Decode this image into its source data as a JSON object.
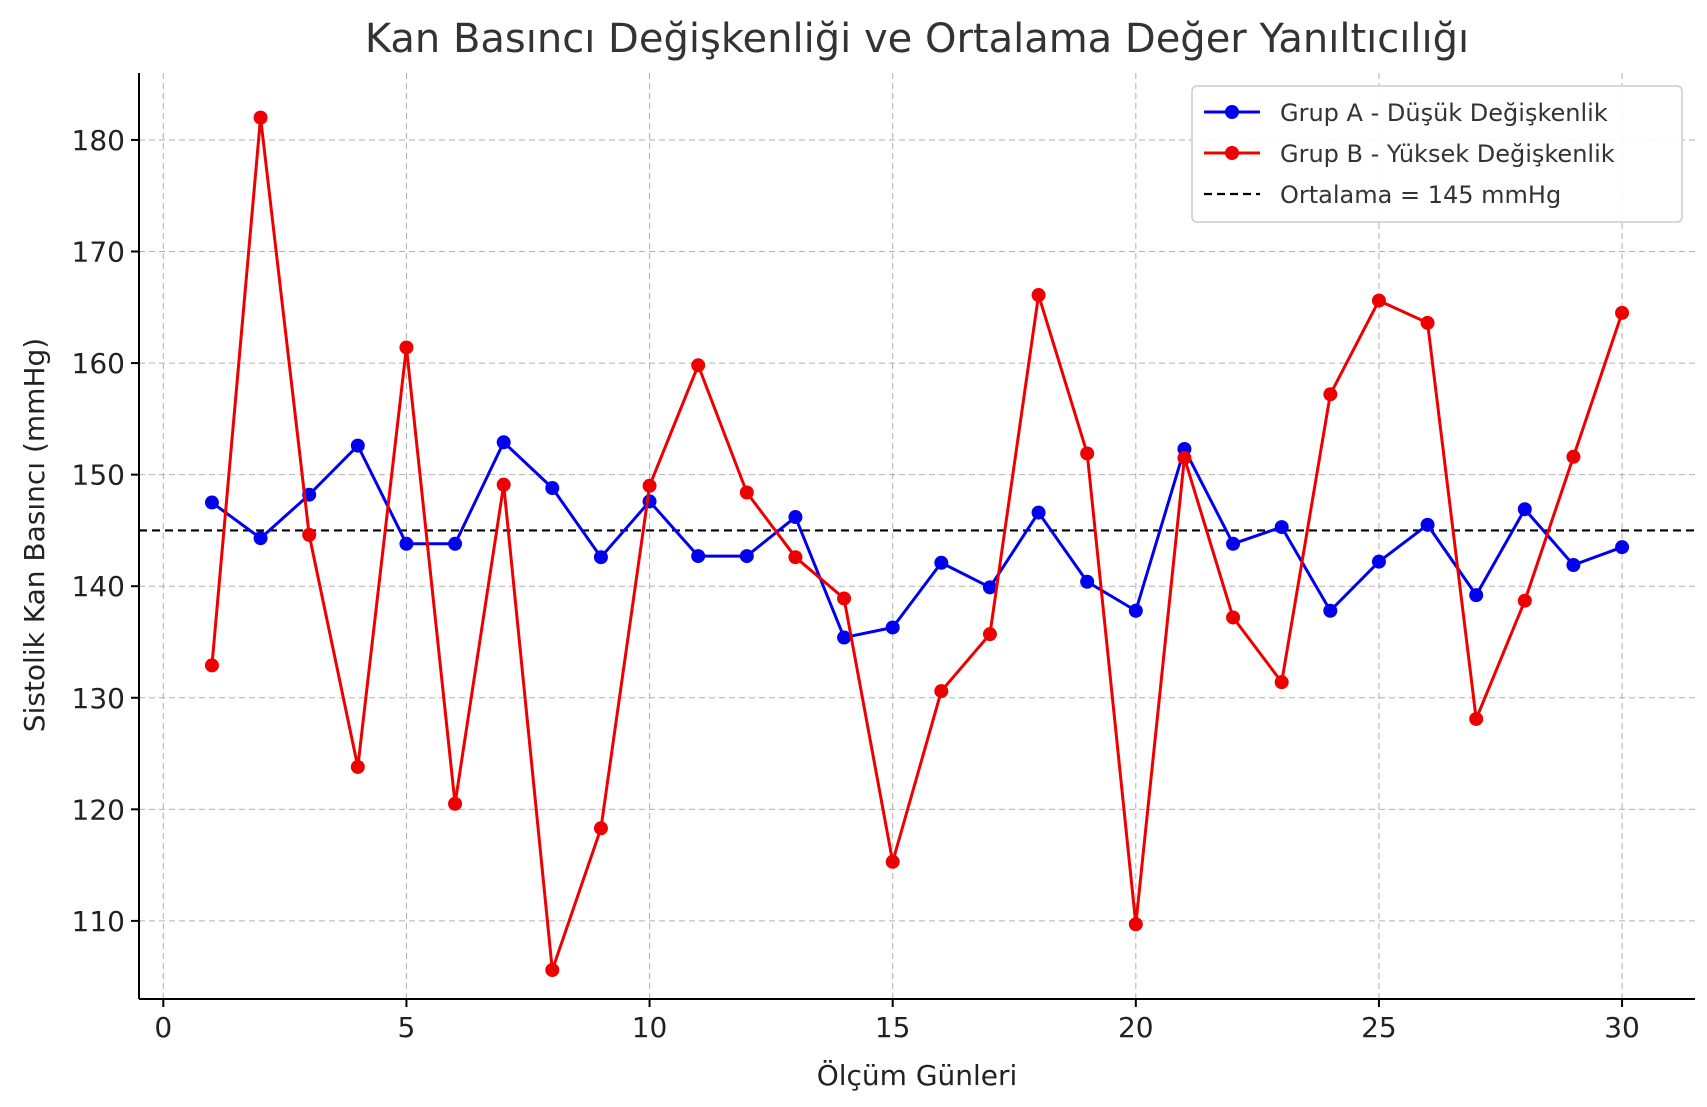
{
  "chart_data": {
    "type": "line",
    "title": "Kan Basıncı Değişkenliği ve Ortalama Değer Yanıltıcılığı",
    "xlabel": "Ölçüm Günleri",
    "ylabel": "Sistolik Kan Basıncı (mmHg)",
    "xlim": [
      -0.5,
      31.5
    ],
    "ylim": [
      103,
      186
    ],
    "xticks": [
      0,
      5,
      10,
      15,
      20,
      25,
      30
    ],
    "yticks": [
      110,
      120,
      130,
      140,
      150,
      160,
      170,
      180
    ],
    "grid": true,
    "legend_position": "top-right",
    "x": [
      1,
      2,
      3,
      4,
      5,
      6,
      7,
      8,
      9,
      10,
      11,
      12,
      13,
      14,
      15,
      16,
      17,
      18,
      19,
      20,
      21,
      22,
      23,
      24,
      25,
      26,
      27,
      28,
      29,
      30
    ],
    "series": [
      {
        "name": "Grup A - Düşük Değişkenlik",
        "color": "#0000ee",
        "values": [
          147.5,
          144.3,
          148.2,
          152.6,
          143.8,
          143.8,
          152.9,
          148.8,
          142.6,
          147.6,
          142.7,
          142.7,
          146.2,
          135.4,
          136.3,
          142.1,
          139.9,
          146.6,
          140.4,
          137.8,
          152.3,
          143.8,
          145.3,
          137.8,
          142.2,
          145.5,
          139.2,
          146.9,
          141.9,
          143.5
        ]
      },
      {
        "name": "Grup B - Yüksek Değişkenlik",
        "color": "#ee0000",
        "values": [
          132.9,
          182.0,
          144.6,
          123.8,
          161.4,
          120.5,
          149.1,
          105.6,
          118.3,
          149.0,
          159.8,
          148.4,
          142.6,
          138.9,
          115.3,
          130.6,
          135.7,
          166.1,
          151.9,
          109.7,
          151.5,
          137.2,
          131.4,
          157.2,
          165.6,
          163.6,
          128.1,
          138.7,
          151.6,
          164.5
        ]
      }
    ],
    "reference_line": {
      "label": "Ortalama = 145 mmHg",
      "value": 145,
      "color": "#000000"
    }
  }
}
